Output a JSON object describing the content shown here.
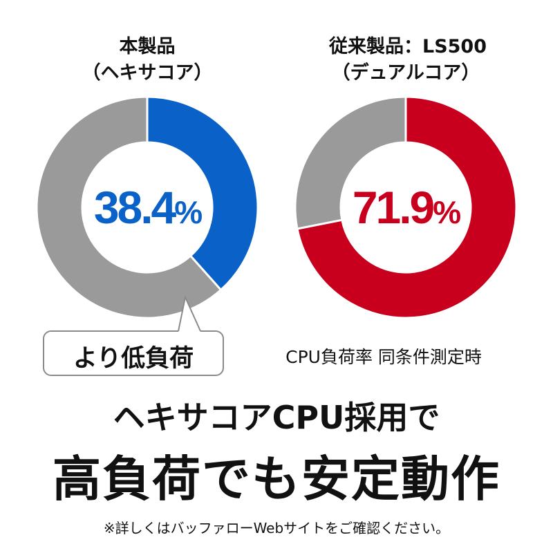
{
  "chart_data": [
    {
      "type": "pie",
      "variant": "donut",
      "title": "本製品",
      "subtitle": "（ヘキサコア）",
      "value": 38.4,
      "value_label": "38.4",
      "unit": "%",
      "colors": {
        "value": "#0a62c8",
        "rest": "#9a9a9a",
        "label": "#0a62c8"
      }
    },
    {
      "type": "pie",
      "variant": "donut",
      "title": "従来製品：LS500",
      "subtitle": "（デュアルコア）",
      "value": 71.9,
      "value_label": "71.9",
      "unit": "%",
      "colors": {
        "value": "#c8001e",
        "rest": "#9a9a9a",
        "label": "#c8001e"
      }
    }
  ],
  "callout": "より低負荷",
  "note": "CPU負荷率 同条件測定時",
  "headline": {
    "line1": "ヘキサコアCPU採用で",
    "line2": "高負荷でも安定動作"
  },
  "footnote": "※詳しくはバッファローWebサイトをご確認ください。"
}
